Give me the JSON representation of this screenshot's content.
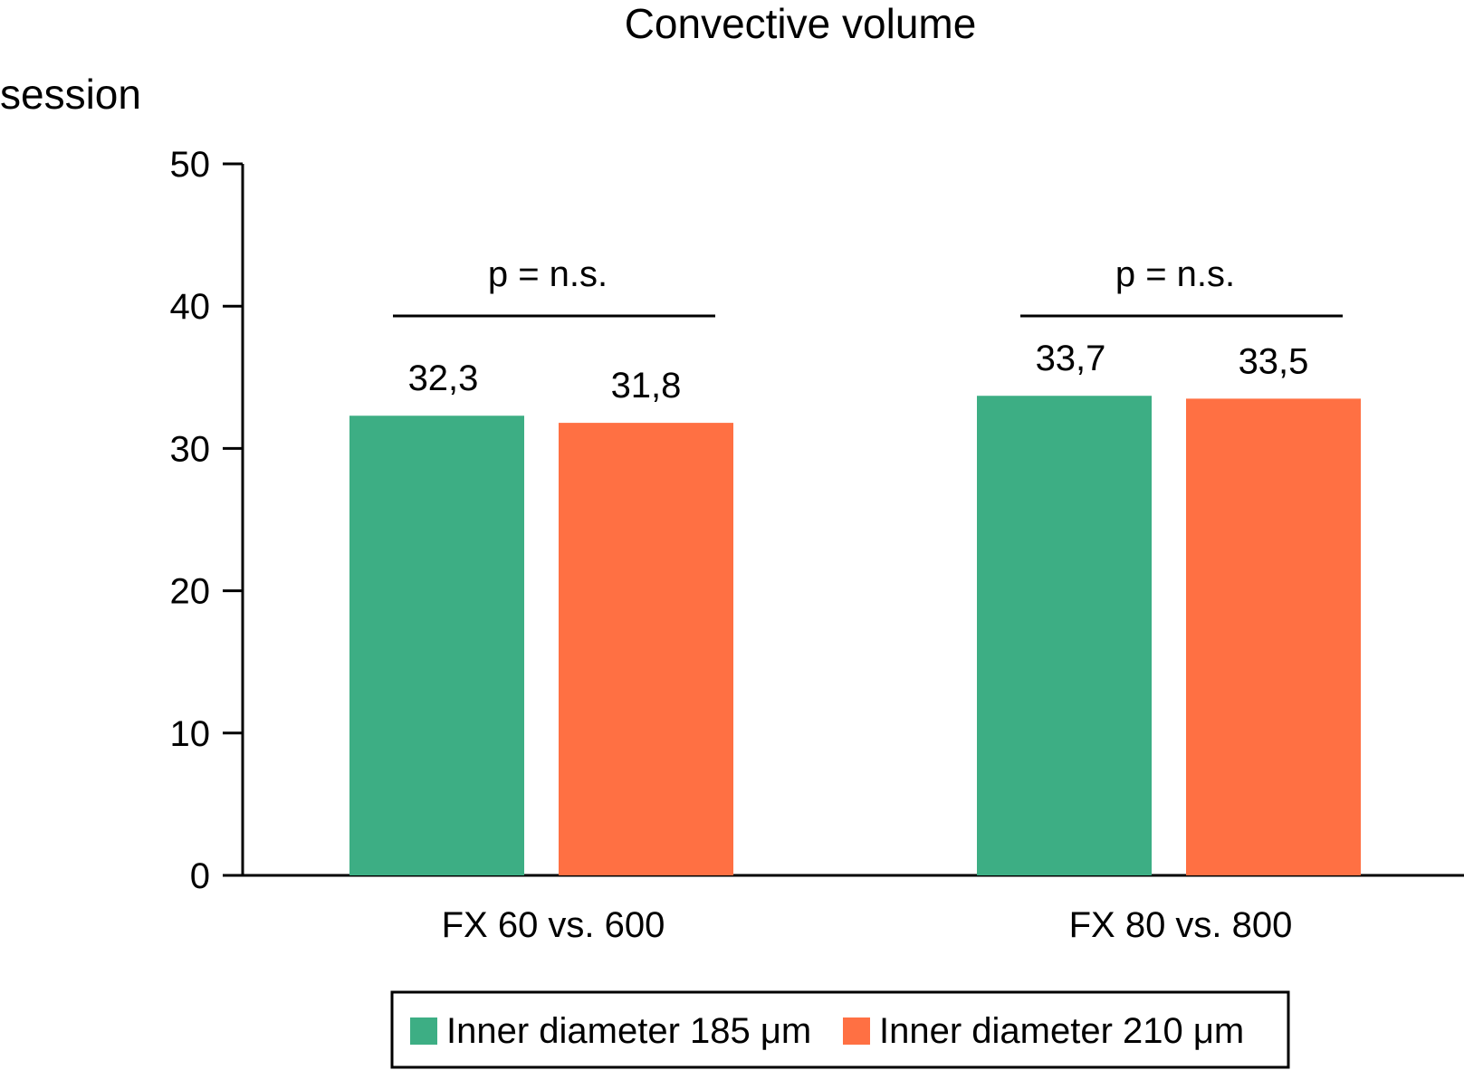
{
  "chart_data": {
    "type": "bar",
    "title": "Convective volume",
    "ylabel": "session",
    "xlabel": "",
    "ylim": [
      0,
      50
    ],
    "yticks": [
      0,
      10,
      20,
      30,
      40,
      50
    ],
    "categories": [
      "FX 60 vs. 600",
      "FX 80 vs. 800"
    ],
    "series": [
      {
        "name": "Inner diameter 185 μm",
        "color": "#3dae84",
        "values": [
          32.3,
          33.7
        ],
        "labels": [
          "32,3",
          "33,7"
        ]
      },
      {
        "name": "Inner diameter 210 μm",
        "color": "#ff7043",
        "values": [
          31.8,
          33.5
        ],
        "labels": [
          "31,8",
          "33,5"
        ]
      }
    ],
    "annotations": [
      {
        "category": "FX 60 vs. 600",
        "text": "p = n.s."
      },
      {
        "category": "FX 80 vs. 800",
        "text": "p = n.s."
      }
    ],
    "grid": false,
    "legend_position": "bottom"
  }
}
